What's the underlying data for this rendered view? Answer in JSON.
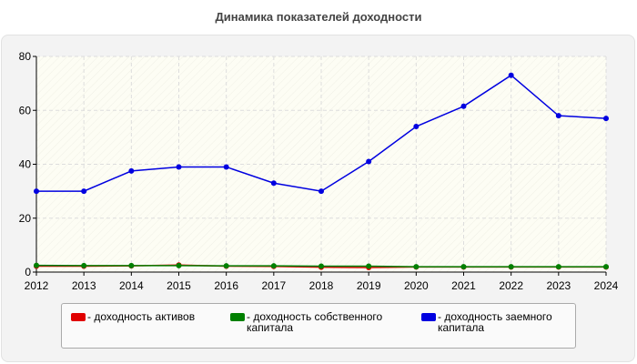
{
  "chart_data": {
    "type": "line",
    "title": "Динамика показателей доходности",
    "x": [
      2012,
      2013,
      2014,
      2015,
      2016,
      2017,
      2018,
      2019,
      2020,
      2021,
      2022,
      2023,
      2024
    ],
    "series": [
      {
        "name": "- доходность активов",
        "color": "#e00000",
        "values": [
          2.2,
          2.2,
          2.3,
          2.6,
          2.2,
          2.1,
          1.8,
          1.7,
          1.9,
          1.9,
          1.9,
          1.9,
          1.9
        ]
      },
      {
        "name": "- доходность собственного капитала",
        "color": "#008000",
        "values": [
          2.5,
          2.4,
          2.4,
          2.4,
          2.3,
          2.3,
          2.2,
          2.2,
          2.0,
          2.0,
          2.0,
          2.0,
          2.0
        ]
      },
      {
        "name": "- доходность заемного капитала",
        "color": "#0000e0",
        "values": [
          30,
          30,
          37.5,
          39,
          39,
          33,
          30,
          41,
          54,
          61.5,
          73,
          58,
          57
        ]
      }
    ],
    "xlim": [
      2012,
      2024
    ],
    "xticks": [
      2012,
      2013,
      2014,
      2015,
      2016,
      2017,
      2018,
      2019,
      2020,
      2021,
      2022,
      2023,
      2024
    ],
    "ylim": [
      0,
      80
    ],
    "yticks": [
      0,
      20,
      40,
      60,
      80
    ],
    "grid": true
  }
}
